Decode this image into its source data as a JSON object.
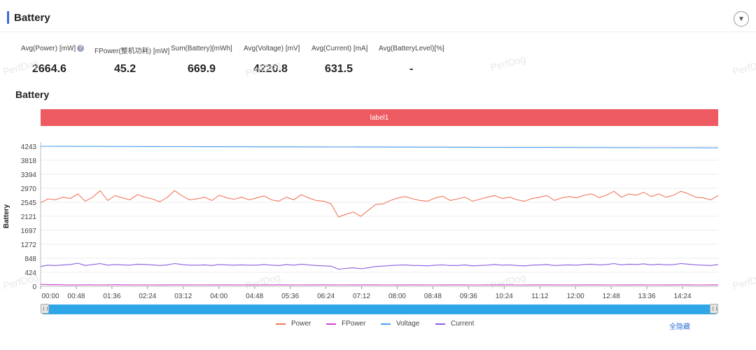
{
  "panel": {
    "title": "Battery"
  },
  "stats": [
    {
      "label": "Avg(Power) [mW]",
      "value": "2664.6",
      "help": "?"
    },
    {
      "label": "FPower(整机功耗) [mW]",
      "value": "45.2"
    },
    {
      "label": "Sum(Battery)[mWh]",
      "value": "669.9"
    },
    {
      "label": "Avg(Voltage) [mV]",
      "value": "4220.8"
    },
    {
      "label": "Avg(Current) [mA]",
      "value": "631.5"
    },
    {
      "label": "Avg(BatteryLevel)[%]",
      "value": "-"
    }
  ],
  "watermark": "PerfDog",
  "chart_data": {
    "type": "line",
    "title": "Battery",
    "ylabel": "Battery",
    "band_label": "label1",
    "ylim": [
      0,
      4243
    ],
    "yticks": [
      0,
      424,
      848,
      1272,
      1697,
      2121,
      2545,
      2970,
      3394,
      3818,
      4243
    ],
    "x_ticks": [
      "00:00",
      "00:48",
      "01:36",
      "02:24",
      "03:12",
      "04:00",
      "04:48",
      "05:36",
      "06:24",
      "07:12",
      "08:00",
      "08:48",
      "09:36",
      "10:24",
      "11:12",
      "12:00",
      "12:48",
      "13:36",
      "14:24"
    ],
    "x_range_seconds": [
      0,
      912
    ],
    "series": [
      {
        "name": "Power",
        "color": "#f07860",
        "values": [
          2530,
          2650,
          2620,
          2700,
          2660,
          2800,
          2580,
          2700,
          2900,
          2600,
          2750,
          2680,
          2620,
          2780,
          2700,
          2650,
          2560,
          2690,
          2900,
          2740,
          2620,
          2650,
          2700,
          2600,
          2760,
          2680,
          2640,
          2700,
          2620,
          2680,
          2740,
          2620,
          2580,
          2700,
          2620,
          2780,
          2680,
          2600,
          2580,
          2500,
          2100,
          2180,
          2250,
          2120,
          2300,
          2480,
          2500,
          2600,
          2680,
          2720,
          2650,
          2600,
          2580,
          2680,
          2730,
          2600,
          2650,
          2700,
          2580,
          2640,
          2700,
          2750,
          2660,
          2700,
          2620,
          2580,
          2660,
          2700,
          2750,
          2600,
          2680,
          2720,
          2680,
          2760,
          2800,
          2690,
          2760,
          2880,
          2700,
          2800,
          2760,
          2850,
          2720,
          2800,
          2700,
          2760,
          2880,
          2800,
          2700,
          2680,
          2620,
          2750
        ]
      },
      {
        "name": "FPower",
        "color": "#cc44cc",
        "values": [
          60,
          48,
          50,
          45,
          40,
          45,
          46,
          44,
          42,
          45,
          48,
          46,
          44,
          42,
          45,
          43,
          41,
          44,
          46,
          45,
          44,
          43,
          42,
          44,
          45,
          46,
          44,
          42,
          45,
          43,
          44,
          45,
          46,
          44,
          43,
          42,
          44,
          45,
          46,
          44,
          43,
          42,
          44,
          45,
          46,
          44,
          43,
          42,
          44,
          45,
          46,
          44,
          43,
          42,
          44,
          45,
          46,
          44,
          43,
          42,
          44,
          45,
          46,
          44,
          43,
          42,
          44,
          45,
          46,
          44,
          43,
          42,
          44,
          45,
          46,
          44,
          43,
          42,
          44,
          45,
          46,
          44,
          43,
          42,
          44,
          45,
          46,
          44,
          43,
          42,
          44,
          45
        ]
      },
      {
        "name": "Voltage",
        "color": "#4d9ff0",
        "values": [
          4243,
          4242,
          4241,
          4240,
          4240,
          4239,
          4239,
          4238,
          4238,
          4237,
          4237,
          4236,
          4236,
          4235,
          4235,
          4234,
          4234,
          4233,
          4233,
          4232,
          4232,
          4231,
          4231,
          4230,
          4230,
          4229,
          4229,
          4228,
          4228,
          4227,
          4227,
          4226,
          4226,
          4225,
          4225,
          4224,
          4224,
          4223,
          4223,
          4222,
          4222,
          4221,
          4221,
          4220,
          4220,
          4219,
          4219,
          4218,
          4218,
          4217,
          4217,
          4216,
          4216,
          4215,
          4215,
          4214,
          4214,
          4213,
          4213,
          4212,
          4212,
          4211,
          4211,
          4210,
          4210,
          4209,
          4209,
          4208,
          4208,
          4207,
          4207,
          4206,
          4206,
          4205,
          4205,
          4204,
          4204,
          4203,
          4203,
          4202,
          4202,
          4201,
          4201,
          4200,
          4200,
          4199,
          4199,
          4198,
          4198,
          4197,
          4197,
          4196
        ]
      },
      {
        "name": "Current",
        "color": "#8a5de0",
        "values": [
          600,
          640,
          630,
          650,
          660,
          700,
          630,
          660,
          690,
          640,
          660,
          650,
          640,
          670,
          660,
          650,
          630,
          650,
          690,
          660,
          640,
          640,
          650,
          630,
          660,
          650,
          640,
          650,
          640,
          640,
          660,
          640,
          630,
          660,
          640,
          670,
          650,
          630,
          620,
          610,
          520,
          540,
          560,
          530,
          560,
          600,
          610,
          630,
          640,
          650,
          630,
          630,
          620,
          640,
          650,
          630,
          630,
          650,
          620,
          630,
          640,
          660,
          640,
          650,
          630,
          620,
          640,
          650,
          660,
          630,
          640,
          650,
          640,
          660,
          670,
          650,
          660,
          690,
          650,
          670,
          660,
          680,
          650,
          670,
          650,
          660,
          690,
          670,
          650,
          640,
          630,
          660
        ]
      }
    ]
  },
  "legend": [
    {
      "name": "Power",
      "color": "#f07860"
    },
    {
      "name": "FPower",
      "color": "#cc44cc"
    },
    {
      "name": "Voltage",
      "color": "#4d9ff0"
    },
    {
      "name": "Current",
      "color": "#8a5de0"
    }
  ],
  "toggle_all_label": "全隐藏"
}
